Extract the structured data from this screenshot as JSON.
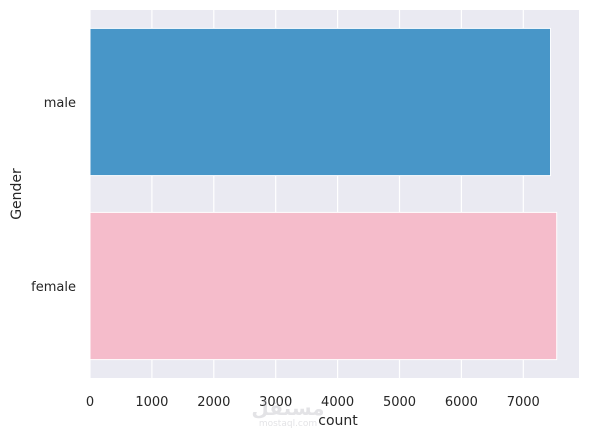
{
  "chart_data": {
    "type": "bar",
    "orientation": "horizontal",
    "categories": [
      "male",
      "female"
    ],
    "values": [
      7440,
      7540
    ],
    "colors": [
      "#4896c8",
      "#f5bccb"
    ],
    "xlabel": "count",
    "ylabel": "Gender",
    "xlim": [
      0,
      7900
    ],
    "xticks": [
      0,
      1000,
      2000,
      3000,
      4000,
      5000,
      6000,
      7000
    ],
    "grid": true,
    "legend": "none"
  },
  "theme": {
    "plot_background": "#eaeaf2",
    "grid_color": "#ffffff",
    "text_color": "#262626"
  },
  "watermark": {
    "text_arabic": "مستقل",
    "text_latin": "mostaql.com"
  }
}
